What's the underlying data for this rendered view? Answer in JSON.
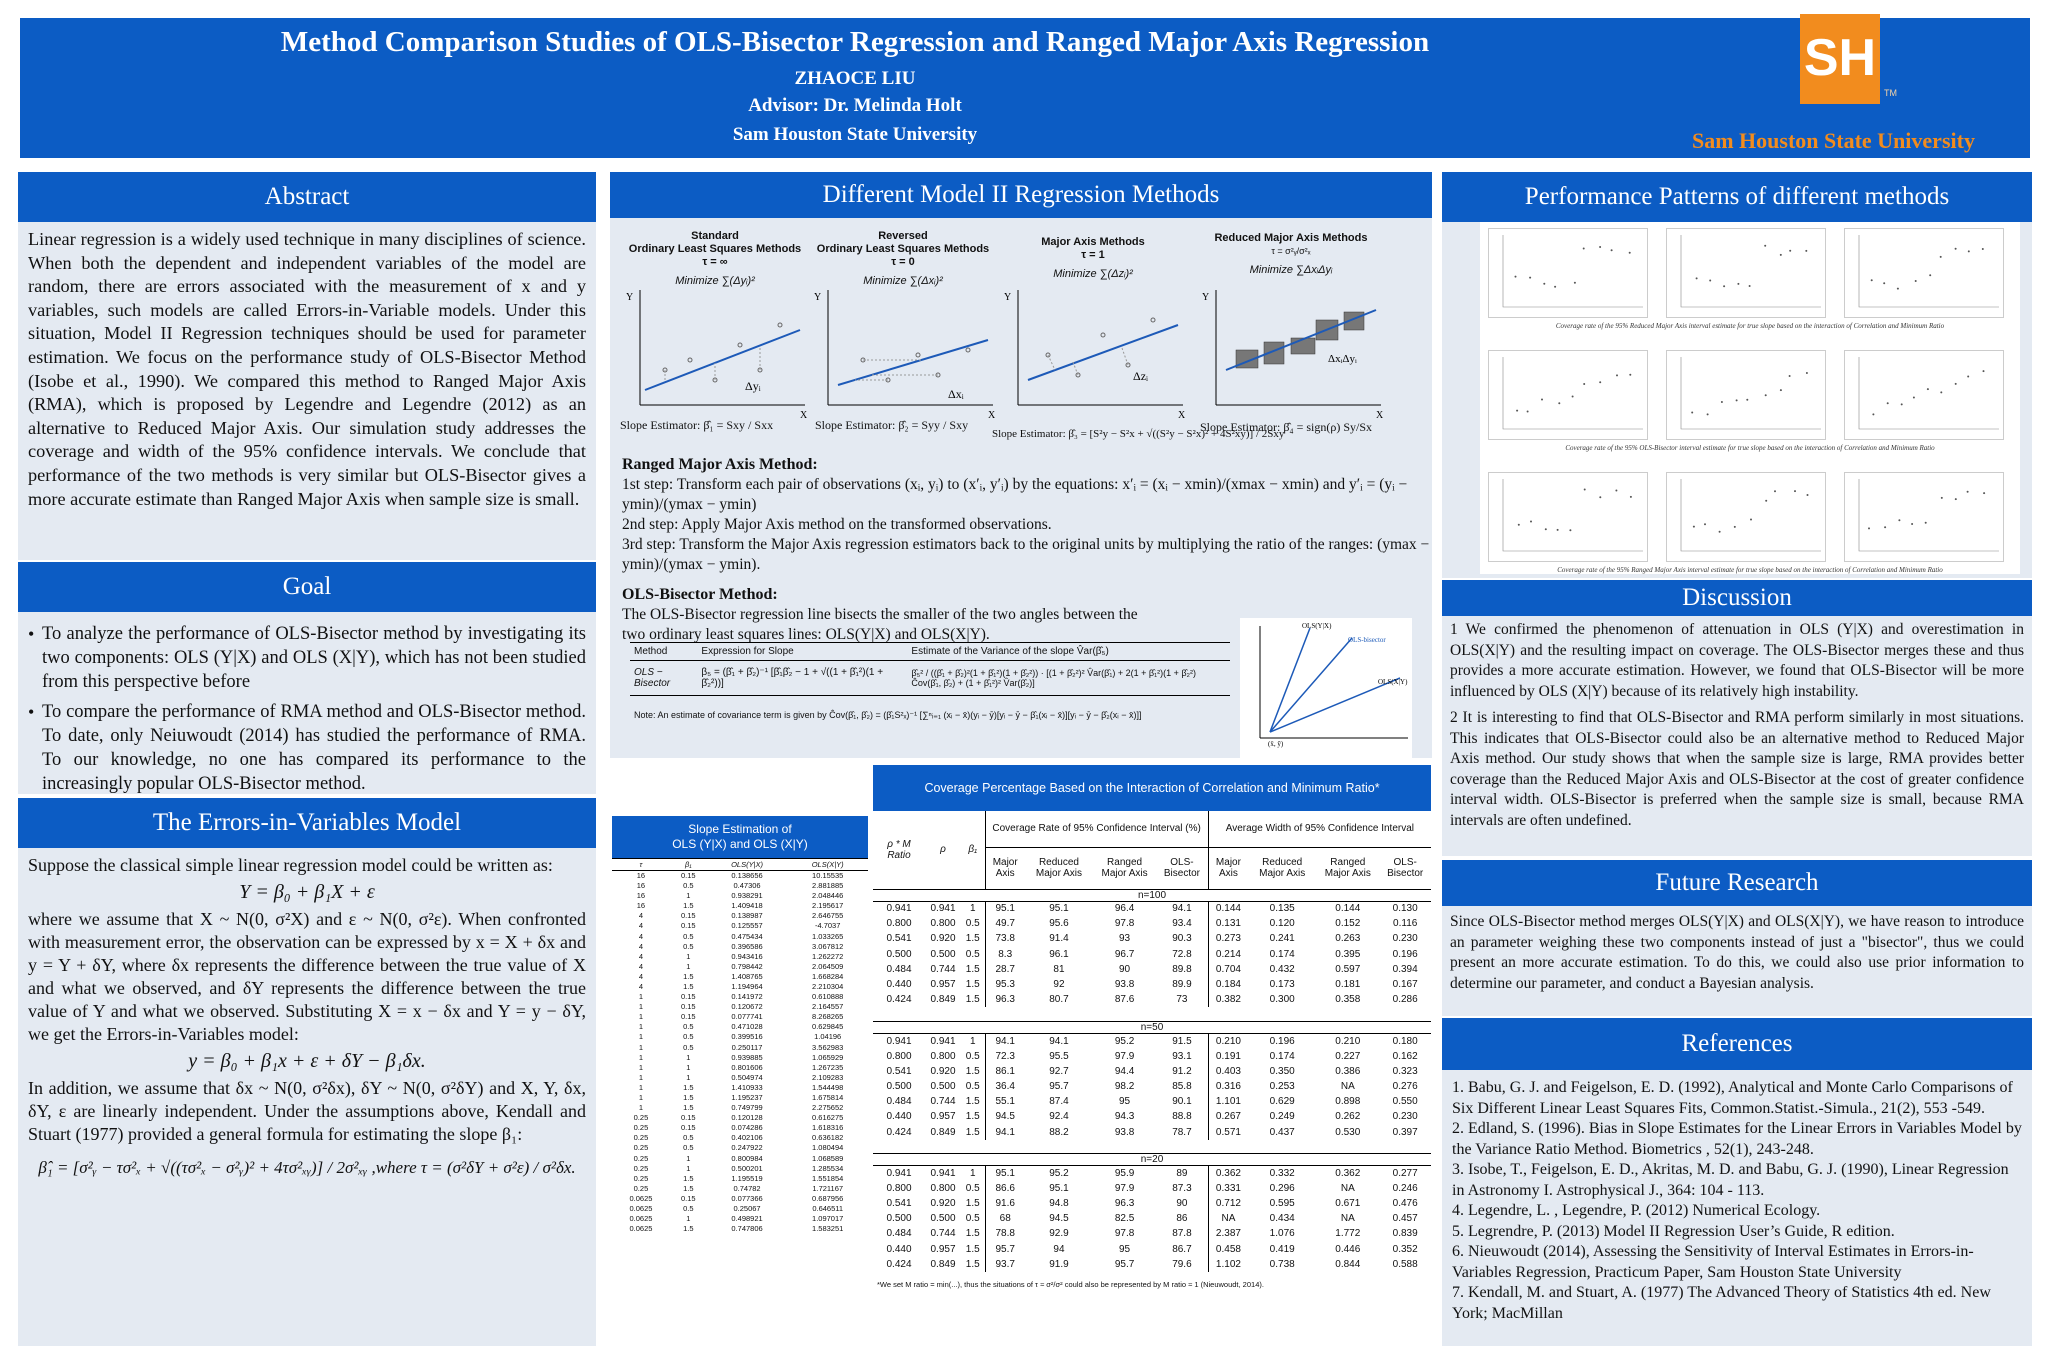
{
  "header": {
    "title": "Method Comparison Studies of  OLS-Bisector Regression and Ranged Major Axis Regression",
    "author": "ZHAOCE LIU",
    "advisor": "Advisor: Dr. Melinda Holt",
    "university": "Sam Houston State University",
    "logo_text": "SH",
    "logo_tm": "TM",
    "logo_caption": "Sam Houston State University",
    "brand_blue": "#0c5cc4",
    "brand_orange": "#f28c1e"
  },
  "abstract": {
    "title": "Abstract",
    "text": "Linear regression is a widely used technique in many disciplines of science. When both the dependent and independent variables of the model are random, there are errors associated with the measurement of x and y variables, such models are called Errors-in-Variable models. Under this situation, Model II Regression techniques should be used for parameter estimation.  We focus on the performance study of OLS-Bisector Method (Isobe et al., 1990). We compared this method to Ranged Major Axis (RMA), which is proposed by Legendre and Legendre (2012) as an alternative to Reduced Major Axis. Our simulation study addresses the coverage and width of the 95% confidence intervals. We conclude that performance of the two methods is very similar but OLS-Bisector gives a more accurate estimate than Ranged Major Axis when sample size is small."
  },
  "goal": {
    "title": "Goal",
    "items": [
      "To analyze the performance of OLS-Bisector method by investigating its two components: OLS (Y|X) and OLS (X|Y), which has not been studied from this perspective before",
      "To compare the performance of RMA method and OLS-Bisector method. To date, only Neiuwoudt (2014) has studied the performance of RMA. To our knowledge, no one has compared its performance to the increasingly popular OLS-Bisector method."
    ]
  },
  "eiv": {
    "title": "The  Errors-in-Variables Model",
    "p1": "Suppose the classical simple linear regression model could be written as:",
    "eq1": "Y = β₀ + β₁X + ε",
    "p2": "where we assume that X ~ N(0, σ²X) and ε ~ N(0, σ²ε). When confronted with measurement error, the observation can be expressed by x = X + δx and y = Y + δY, where δx represents the difference between the true value of X and what we observed, and δY represents the difference between the true value of Y and what we observed. Substituting X = x − δx and Y = y − δY, we get the Errors-in-Variables model:",
    "eq2": "y = β₀ + β₁x + ε + δY − β₁δx.",
    "p3": "In addition, we assume that δx ~ N(0, σ²δx), δY ~ N(0, σ²δY) and X, Y, δx, δY, ε are linearly independent. Under the assumptions above, Kendall and Stuart (1977) provided a general formula for estimating the slope β₁:",
    "eq3": "β̂₁ = [σ²ᵧ − τσ²ₓ + √((τσ²ₓ − σ²ᵧ)² + 4τσ²ₓᵧ)] / 2σ²ₓᵧ ,where  τ = (σ²δY + σ²ε) / σ²δx."
  },
  "methods": {
    "title": "Different Model II Regression Methods",
    "cards": [
      {
        "name": "Standard\nOrdinary Least Squares Methods",
        "tau": "τ = ∞",
        "minimize": "Minimize ∑(Δyᵢ)²",
        "delta": "Δyᵢ",
        "slope": "Slope Estimator:  β̂₁ = Sxy / Sxx"
      },
      {
        "name": "Reversed\nOrdinary Least Squares Methods",
        "tau": "τ = 0",
        "minimize": "Minimize ∑(Δxᵢ)²",
        "delta": "Δxᵢ",
        "slope": "Slope Estimator:  β̂₂ = Syy / Sxy"
      },
      {
        "name": "Major Axis Methods",
        "tau": "τ = 1",
        "minimize": "Minimize ∑(Δzᵢ)²",
        "delta": "Δzᵢ",
        "slope": "Slope Estimator:  β̂₃ = [S²y − S²x + √((S²y − S²x)² + 4S²xy)] / 2Sxy"
      },
      {
        "name": "Reduced Major Axis Methods",
        "tau": "τ = σ²ᵧ/σ²ₓ",
        "minimize": "Minimize ∑ΔxᵢΔyᵢ",
        "delta": "ΔxᵢΔyᵢ",
        "slope": "Slope Estimator:  β̂₄ = sign(ρ) Sy/Sx"
      }
    ],
    "axis_y": "Y",
    "axis_x": "X",
    "rma_title": "Ranged Major Axis Method:",
    "rma_step1": "1st step: Transform each pair of observations (xᵢ, yᵢ) to (x′ᵢ, y′ᵢ) by  the  equations: x′ᵢ = (xᵢ − xmin)/(xmax − xmin) and y′ᵢ = (yᵢ − ymin)/(ymax − ymin)",
    "rma_step2": "2nd step: Apply Major Axis method on the transformed observations.",
    "rma_step3": "3rd step: Transform the Major Axis regression estimators back to the original units by multiplying the ratio of the ranges: (ymax − ymin)/(ymax − ymin).",
    "ols_title": "OLS-Bisector Method:",
    "ols_text": "The OLS-Bisector regression line bisects the smaller of the two angles between the two ordinary least squares lines: OLS(Y|X) and OLS(X|Y).",
    "table_headers": [
      "Method",
      "Expression for Slope",
      "Estimate of the Variance of the slope V̂ar(β̂₅)"
    ],
    "table_row": [
      "OLS − Bisector",
      "β₅ = (β̂₁ + β̂₂)⁻¹ [β̂₁β̂₂ − 1 + √((1 + β̂₁²)(1 + β̂₂²))]",
      "β̂₅² / ((β̂₁ + β̂₂)²(1 + β̂₁²)(1 + β̂₂²)) · [(1 + β̂₂²)² V̂ar(β̂₁) + 2(1 + β̂₁²)(1 + β̂₂²) Ĉov(β̂₁, β̂₂) + (1 + β̂₁²)² V̂ar(β̂₂)]"
    ],
    "note": "Note: An estimate of covariance term is given by Ĉov(β̂₁, β̂₂) = (β̂₁S²ₓ)⁻¹ [∑ⁿᵢ₌₁ (xᵢ − x̄)(yᵢ − ȳ)[yᵢ − ȳ − β̂₁(xᵢ − x̄)][yᵢ − ȳ − β̂₂(xᵢ − x̄)]]",
    "diagram_labels": [
      "OLS(Y|X)",
      "OLS-bisector",
      "OLS(X|Y)",
      "(x̄, ȳ)"
    ]
  },
  "slopes": {
    "title": "Slope Estimation of\nOLS (Y|X) and OLS (X|Y)",
    "headers": [
      "τ",
      "β₁",
      "OLS(Y|X)",
      "OLS(X|Y)"
    ],
    "rows": [
      [
        "16",
        "0.15",
        "0.138656",
        "10.15535"
      ],
      [
        "16",
        "0.5",
        "0.47306",
        "2.881885"
      ],
      [
        "16",
        "1",
        "0.938291",
        "2.048446"
      ],
      [
        "16",
        "1.5",
        "1.409418",
        "2.195617"
      ],
      [
        "4",
        "0.15",
        "0.138987",
        "2.646755"
      ],
      [
        "4",
        "0.15",
        "0.125557",
        "-4.7037"
      ],
      [
        "4",
        "0.5",
        "0.475434",
        "1.033265"
      ],
      [
        "4",
        "0.5",
        "0.396586",
        "3.067812"
      ],
      [
        "4",
        "1",
        "0.943416",
        "1.262272"
      ],
      [
        "4",
        "1",
        "0.798442",
        "2.064509"
      ],
      [
        "4",
        "1.5",
        "1.408765",
        "1.668284"
      ],
      [
        "4",
        "1.5",
        "1.194964",
        "2.210304"
      ],
      [
        "1",
        "0.15",
        "0.141972",
        "0.610888"
      ],
      [
        "1",
        "0.15",
        "0.120672",
        "2.164557"
      ],
      [
        "1",
        "0.15",
        "0.077741",
        "8.268265"
      ],
      [
        "1",
        "0.5",
        "0.471028",
        "0.629845"
      ],
      [
        "1",
        "0.5",
        "0.399516",
        "1.04196"
      ],
      [
        "1",
        "0.5",
        "0.250117",
        "3.562983"
      ],
      [
        "1",
        "1",
        "0.939885",
        "1.065929"
      ],
      [
        "1",
        "1",
        "0.801606",
        "1.267235"
      ],
      [
        "1",
        "1",
        "0.504974",
        "2.109283"
      ],
      [
        "1",
        "1.5",
        "1.410933",
        "1.544498"
      ],
      [
        "1",
        "1.5",
        "1.195237",
        "1.675814"
      ],
      [
        "1",
        "1.5",
        "0.749799",
        "2.275652"
      ],
      [
        "0.25",
        "0.15",
        "0.120128",
        "0.616275"
      ],
      [
        "0.25",
        "0.15",
        "0.074286",
        "1.618316"
      ],
      [
        "0.25",
        "0.5",
        "0.402106",
        "0.636182"
      ],
      [
        "0.25",
        "0.5",
        "0.247922",
        "1.080494"
      ],
      [
        "0.25",
        "1",
        "0.800984",
        "1.068589"
      ],
      [
        "0.25",
        "1",
        "0.500201",
        "1.285534"
      ],
      [
        "0.25",
        "1.5",
        "1.195519",
        "1.551854"
      ],
      [
        "0.25",
        "1.5",
        "0.74782",
        "1.721167"
      ],
      [
        "0.0625",
        "0.15",
        "0.077366",
        "0.687956"
      ],
      [
        "0.0625",
        "0.5",
        "0.25067",
        "0.646511"
      ],
      [
        "0.0625",
        "1",
        "0.498921",
        "1.097017"
      ],
      [
        "0.0625",
        "1.5",
        "0.747806",
        "1.583251"
      ]
    ]
  },
  "coverage": {
    "title": "Coverage Percentage Based on the Interaction of Correlation and  Minimum Ratio*",
    "col_labels": [
      "ρ * M Ratio",
      "ρ",
      "β₁"
    ],
    "group1": "Coverage Rate of 95% Confidence Interval (%)",
    "group2": "Average Width of 95% Confidence Interval",
    "sub_headers": [
      "Major Axis",
      "Reduced Major Axis",
      "Ranged Major Axis",
      "OLS-Bisector",
      "Major Axis",
      "Reduced Major Axis",
      "Ranged Major Axis",
      "OLS-Bisector"
    ],
    "blocks": [
      {
        "n": "n=100",
        "rows": [
          [
            "0.941",
            "0.941",
            "1",
            "95.1",
            "95.1",
            "96.4",
            "94.1",
            "0.144",
            "0.135",
            "0.144",
            "0.130"
          ],
          [
            "0.800",
            "0.800",
            "0.5",
            "49.7",
            "95.6",
            "97.8",
            "93.4",
            "0.131",
            "0.120",
            "0.152",
            "0.116"
          ],
          [
            "0.541",
            "0.920",
            "1.5",
            "73.8",
            "91.4",
            "93",
            "90.3",
            "0.273",
            "0.241",
            "0.263",
            "0.230"
          ],
          [
            "0.500",
            "0.500",
            "0.5",
            "8.3",
            "96.1",
            "96.7",
            "72.8",
            "0.214",
            "0.174",
            "0.395",
            "0.196"
          ],
          [
            "0.484",
            "0.744",
            "1.5",
            "28.7",
            "81",
            "90",
            "89.8",
            "0.704",
            "0.432",
            "0.597",
            "0.394"
          ],
          [
            "0.440",
            "0.957",
            "1.5",
            "95.3",
            "92",
            "93.8",
            "89.9",
            "0.184",
            "0.173",
            "0.181",
            "0.167"
          ],
          [
            "0.424",
            "0.849",
            "1.5",
            "96.3",
            "80.7",
            "87.6",
            "73",
            "0.382",
            "0.300",
            "0.358",
            "0.286"
          ]
        ]
      },
      {
        "n": "n=50",
        "rows": [
          [
            "0.941",
            "0.941",
            "1",
            "94.1",
            "94.1",
            "95.2",
            "91.5",
            "0.210",
            "0.196",
            "0.210",
            "0.180"
          ],
          [
            "0.800",
            "0.800",
            "0.5",
            "72.3",
            "95.5",
            "97.9",
            "93.1",
            "0.191",
            "0.174",
            "0.227",
            "0.162"
          ],
          [
            "0.541",
            "0.920",
            "1.5",
            "86.1",
            "92.7",
            "94.4",
            "91.2",
            "0.403",
            "0.350",
            "0.386",
            "0.323"
          ],
          [
            "0.500",
            "0.500",
            "0.5",
            "36.4",
            "95.7",
            "98.2",
            "85.8",
            "0.316",
            "0.253",
            "NA",
            "0.276"
          ],
          [
            "0.484",
            "0.744",
            "1.5",
            "55.1",
            "87.4",
            "95",
            "90.1",
            "1.101",
            "0.629",
            "0.898",
            "0.550"
          ],
          [
            "0.440",
            "0.957",
            "1.5",
            "94.5",
            "92.4",
            "94.3",
            "88.8",
            "0.267",
            "0.249",
            "0.262",
            "0.230"
          ],
          [
            "0.424",
            "0.849",
            "1.5",
            "94.1",
            "88.2",
            "93.8",
            "78.7",
            "0.571",
            "0.437",
            "0.530",
            "0.397"
          ]
        ]
      },
      {
        "n": "n=20",
        "rows": [
          [
            "0.941",
            "0.941",
            "1",
            "95.1",
            "95.2",
            "95.9",
            "89",
            "0.362",
            "0.332",
            "0.362",
            "0.277"
          ],
          [
            "0.800",
            "0.800",
            "0.5",
            "86.6",
            "95.1",
            "97.9",
            "87.3",
            "0.331",
            "0.296",
            "NA",
            "0.246"
          ],
          [
            "0.541",
            "0.920",
            "1.5",
            "91.6",
            "94.8",
            "96.3",
            "90",
            "0.712",
            "0.595",
            "0.671",
            "0.476"
          ],
          [
            "0.500",
            "0.500",
            "0.5",
            "68",
            "94.5",
            "82.5",
            "86",
            "NA",
            "0.434",
            "NA",
            "0.457"
          ],
          [
            "0.484",
            "0.744",
            "1.5",
            "78.8",
            "92.9",
            "97.8",
            "87.8",
            "2.387",
            "1.076",
            "1.772",
            "0.839"
          ],
          [
            "0.440",
            "0.957",
            "1.5",
            "95.7",
            "94",
            "95",
            "86.7",
            "0.458",
            "0.419",
            "0.446",
            "0.352"
          ],
          [
            "0.424",
            "0.849",
            "1.5",
            "93.7",
            "91.9",
            "95.7",
            "79.6",
            "1.102",
            "0.738",
            "0.844",
            "0.588"
          ]
        ]
      }
    ],
    "footnote": "*We set M ratio = min(...), thus the situations of τ ≈ σ²/σ² could also be represented by M ratio ≈ 1 (Nieuwoudt, 2014)."
  },
  "performance": {
    "title": "Performance Patterns of  different methods",
    "captions": [
      "Coverage rate of the 95% Reduced Major Axis interval estimate for true slope based on the interaction of Correlation and Minimum Ratio",
      "Coverage rate of the 95% OLS-Bisector interval estimate for true slope based on the interaction of Correlation and Minimum Ratio",
      "Coverage rate of the 95% Ranged Major Axis interval estimate for true slope based on the interaction of Correlation and Minimum Ratio"
    ]
  },
  "discussion": {
    "title": "Discussion",
    "p1": "1 We confirmed the phenomenon of attenuation in OLS (Y|X) and overestimation in OLS(X|Y) and the resulting impact on coverage. The OLS-Bisector merges these and thus provides a more accurate estimation. However, we found that OLS-Bisector will be more influenced by OLS (X|Y) because of its relatively high instability.",
    "p2": "2 It is interesting to find that OLS-Bisector and RMA perform similarly in most situations. This indicates that OLS-Bisector could also be an alternative method to Reduced Major Axis method. Our study shows that when the sample size is large, RMA provides better coverage than the Reduced Major Axis and OLS-Bisector at the cost of greater confidence interval width. OLS-Bisector is preferred when the sample size is small, because RMA intervals are often undefined."
  },
  "future": {
    "title": "Future Research",
    "text": "Since OLS-Bisector method merges OLS(Y|X) and OLS(X|Y), we have reason to introduce an parameter weighing these two components instead of just a \"bisector\", thus we could present an more accurate estimation. To do this, we could also use prior information to determine our parameter, and conduct a Bayesian analysis."
  },
  "references": {
    "title": "References",
    "items": [
      "1. Babu, G. J. and Feigelson, E. D. (1992), Analytical and Monte Carlo Comparisons of Six Different Linear Least Squares Fits, Common.Statist.-Simula., 21(2), 553 -549.",
      "2. Edland, S. (1996). Bias in Slope Estimates for the Linear Errors in Variables Model by the Variance Ratio Method. Biometrics , 52(1), 243-248.",
      "3. Isobe, T., Feigelson, E. D., Akritas, M. D. and Babu, G. J. (1990), Linear Regression in Astronomy I. Astrophysical J., 364: 104 - 113.",
      "4. Legendre, L. , Legendre, P. (2012) Numerical Ecology.",
      "5. Legrendre, P. (2013) Model II Regression User’s Guide, R edition.",
      "6. Nieuwoudt (2014), Assessing the Sensitivity of Interval Estimates in Errors-in-Variables Regression, Practicum Paper, Sam Houston State University",
      "7. Kendall, M. and Stuart, A. (1977) The Advanced Theory of Statistics 4th ed. New York; MacMillan"
    ]
  }
}
